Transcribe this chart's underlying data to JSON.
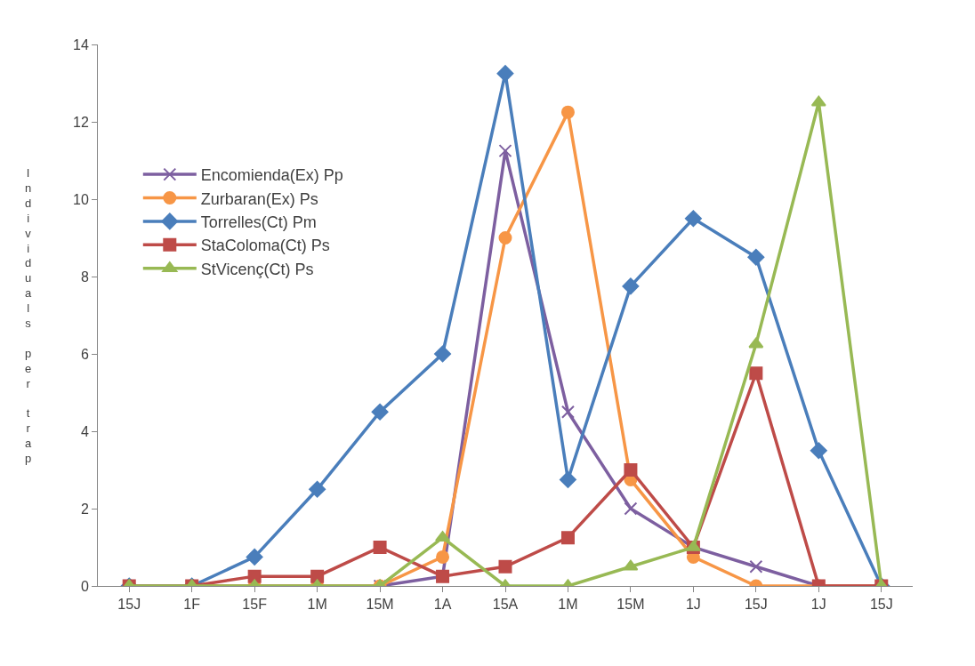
{
  "chart_data": {
    "type": "line",
    "ylabel": "Individuals per trap",
    "categories": [
      "15J",
      "1F",
      "15F",
      "1M",
      "15M",
      "1A",
      "15A",
      "1M",
      "15M",
      "1J",
      "15J",
      "1J",
      "15J"
    ],
    "series": [
      {
        "name": "Encomienda(Ex) Pp",
        "color": "#7d5fa0",
        "marker": "cross",
        "values": [
          0,
          0,
          0,
          0,
          0,
          0.25,
          11.25,
          4.5,
          2,
          1,
          0.5,
          0,
          0
        ]
      },
      {
        "name": "Zurbaran(Ex) Ps",
        "color": "#f79646",
        "marker": "circle",
        "values": [
          0,
          0,
          0,
          0,
          0,
          0.75,
          9,
          12.25,
          2.75,
          0.75,
          0,
          0,
          0
        ]
      },
      {
        "name": "Torrelles(Ct) Pm",
        "color": "#4a7ebb",
        "marker": "diamond",
        "values": [
          0,
          0,
          0.75,
          2.5,
          4.5,
          6,
          13.25,
          2.75,
          7.75,
          9.5,
          8.5,
          3.5,
          0
        ]
      },
      {
        "name": "StaColoma(Ct) Ps",
        "color": "#be4b48",
        "marker": "square",
        "values": [
          0,
          0,
          0.25,
          0.25,
          1,
          0.25,
          0.5,
          1.25,
          3,
          1,
          5.5,
          0,
          0
        ]
      },
      {
        "name": "StVicenç(Ct) Ps",
        "color": "#98b954",
        "marker": "triangle",
        "values": [
          0,
          0,
          0,
          0,
          0,
          1.25,
          0,
          0,
          0.5,
          1,
          6.25,
          12.5,
          0
        ]
      }
    ],
    "ylim": [
      0,
      14
    ],
    "yticks": [
      0,
      2,
      4,
      6,
      8,
      10,
      12,
      14
    ],
    "legend": "top left"
  }
}
